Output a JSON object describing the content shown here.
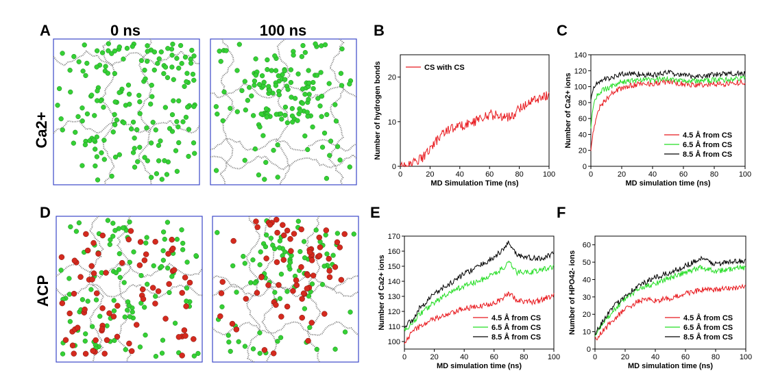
{
  "figure": {
    "row_labels": [
      "Ca2+",
      "ACP"
    ],
    "column_titles": [
      "0 ns",
      "100 ns"
    ],
    "panel_letters": [
      "A",
      "B",
      "C",
      "D",
      "E",
      "F"
    ],
    "colors": {
      "ca_ion": "#35d035",
      "phosphate": "#d42a1e",
      "chain": "#777777",
      "box": "#3a47c8"
    }
  },
  "snapshots": {
    "A_0ns": {
      "panel": "A",
      "time": "0 ns",
      "system": "Ca2+",
      "image": "snapshot of CS chains with scattered Ca2+ ions"
    },
    "A_100ns": {
      "panel": "A",
      "time": "100 ns",
      "system": "Ca2+",
      "image": "snapshot of aggregated CS chains with Ca2+ ions"
    },
    "D_0ns": {
      "panel": "D",
      "time": "0 ns",
      "system": "ACP",
      "image": "snapshot of CS chains with Ca2+ and phosphate ions"
    },
    "D_100ns": {
      "panel": "D",
      "time": "100 ns",
      "system": "ACP",
      "image": "snapshot of clustered ACP on CS chains"
    }
  },
  "chart_data": [
    {
      "panel": "B",
      "type": "line",
      "xlabel": "MD Simulation Time (ns)",
      "ylabel": "Number of hydrogen bonds",
      "xlim": [
        0,
        100
      ],
      "ylim": [
        0,
        25
      ],
      "xticks": [
        0,
        20,
        40,
        60,
        80,
        100
      ],
      "yticks": [
        0,
        10,
        20
      ],
      "legend_position": "top-left",
      "series": [
        {
          "name": "CS with CS",
          "color": "#e8171c",
          "x": [
            0,
            5,
            10,
            15,
            20,
            25,
            30,
            35,
            40,
            45,
            50,
            55,
            60,
            65,
            70,
            75,
            80,
            85,
            90,
            95,
            100
          ],
          "y": [
            0,
            0,
            1,
            2,
            4,
            6,
            8,
            8.5,
            9,
            9.5,
            10,
            11,
            11.5,
            11.5,
            11,
            11,
            13,
            14,
            15,
            15.5,
            16
          ]
        }
      ]
    },
    {
      "panel": "C",
      "type": "line",
      "xlabel": "MD simulation time (ns)",
      "ylabel": "Number of Ca2+ ions",
      "xlim": [
        0,
        100
      ],
      "ylim": [
        0,
        140
      ],
      "xticks": [
        0,
        20,
        40,
        60,
        80,
        100
      ],
      "yticks": [
        0,
        20,
        40,
        60,
        80,
        100,
        120,
        140
      ],
      "legend_position": "bottom-right",
      "series": [
        {
          "name": "4.5 Å from CS",
          "color": "#e8171c",
          "x": [
            0,
            2,
            5,
            10,
            15,
            20,
            30,
            40,
            50,
            60,
            70,
            80,
            90,
            100
          ],
          "y": [
            20,
            50,
            72,
            85,
            93,
            98,
            103,
            104,
            106,
            103,
            102,
            103,
            104,
            106
          ]
        },
        {
          "name": "6.5 Å from CS",
          "color": "#22dd22",
          "x": [
            0,
            2,
            5,
            10,
            15,
            20,
            30,
            40,
            50,
            60,
            70,
            80,
            90,
            100
          ],
          "y": [
            50,
            80,
            92,
            98,
            102,
            106,
            108,
            108,
            110,
            108,
            107,
            108,
            109,
            111
          ]
        },
        {
          "name": "8.5 Å from CS",
          "color": "#000000",
          "x": [
            0,
            2,
            5,
            10,
            15,
            20,
            30,
            40,
            50,
            60,
            70,
            80,
            90,
            100
          ],
          "y": [
            85,
            100,
            106,
            110,
            112,
            116,
            116,
            114,
            118,
            114,
            113,
            115,
            116,
            117
          ]
        }
      ]
    },
    {
      "panel": "E",
      "type": "line",
      "xlabel": "MD simulation time (ns)",
      "ylabel": "Number of Ca2+ ions",
      "xlim": [
        0,
        100
      ],
      "ylim": [
        95,
        170
      ],
      "xticks": [
        0,
        20,
        40,
        60,
        80,
        100
      ],
      "yticks": [
        100,
        110,
        120,
        130,
        140,
        150,
        160,
        170
      ],
      "legend_position": "bottom-right",
      "series": [
        {
          "name": "4.5 Å from CS",
          "color": "#e8171c",
          "x": [
            0,
            5,
            10,
            20,
            30,
            40,
            50,
            60,
            65,
            70,
            75,
            80,
            90,
            100
          ],
          "y": [
            100,
            106,
            110,
            115,
            118,
            122,
            123,
            126,
            128,
            132,
            128,
            126,
            127,
            131
          ]
        },
        {
          "name": "6.5 Å from CS",
          "color": "#22dd22",
          "x": [
            0,
            5,
            10,
            20,
            30,
            40,
            50,
            60,
            65,
            70,
            75,
            80,
            90,
            100
          ],
          "y": [
            107,
            112,
            118,
            126,
            132,
            137,
            140,
            145,
            148,
            152,
            146,
            146,
            147,
            150
          ]
        },
        {
          "name": "8.5 Å from CS",
          "color": "#000000",
          "x": [
            0,
            5,
            10,
            20,
            30,
            40,
            50,
            60,
            65,
            70,
            75,
            80,
            90,
            100
          ],
          "y": [
            110,
            114,
            122,
            132,
            138,
            145,
            150,
            156,
            160,
            166,
            158,
            156,
            155,
            158
          ]
        }
      ]
    },
    {
      "panel": "F",
      "type": "line",
      "xlabel": "MD simulation time (ns)",
      "ylabel": "Number of HPO42- ions",
      "xlim": [
        0,
        100
      ],
      "ylim": [
        0,
        65
      ],
      "xticks": [
        0,
        20,
        40,
        60,
        80,
        100
      ],
      "yticks": [
        0,
        10,
        20,
        30,
        40,
        50,
        60
      ],
      "legend_position": "bottom-right",
      "series": [
        {
          "name": "4.5 Å from CS",
          "color": "#e8171c",
          "x": [
            0,
            5,
            10,
            20,
            30,
            40,
            50,
            60,
            70,
            80,
            90,
            100
          ],
          "y": [
            5,
            10,
            15,
            23,
            28,
            28,
            29,
            32,
            34,
            34,
            35,
            36
          ]
        },
        {
          "name": "6.5 Å from CS",
          "color": "#22dd22",
          "x": [
            0,
            5,
            10,
            20,
            30,
            40,
            50,
            60,
            70,
            80,
            90,
            100
          ],
          "y": [
            8,
            14,
            20,
            29,
            35,
            38,
            41,
            44,
            47,
            45,
            46,
            47
          ]
        },
        {
          "name": "8.5 Å from CS",
          "color": "#000000",
          "x": [
            0,
            5,
            10,
            20,
            30,
            40,
            50,
            60,
            70,
            80,
            90,
            100
          ],
          "y": [
            9,
            16,
            22,
            31,
            37,
            41,
            44,
            48,
            52,
            49,
            50,
            51
          ]
        }
      ]
    }
  ]
}
